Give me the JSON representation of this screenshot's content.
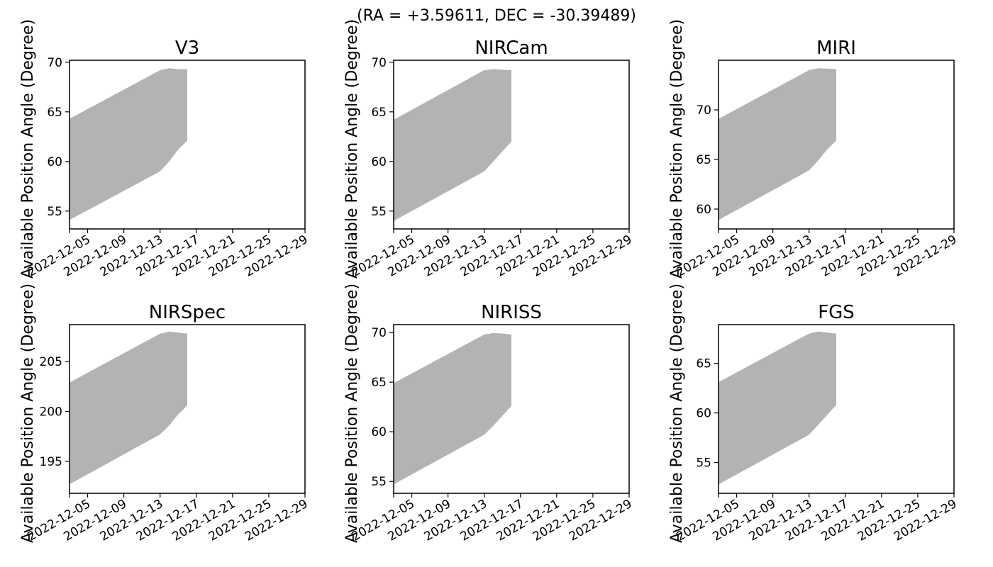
{
  "figure": {
    "title": "(RA = +3.59611, DEC = -30.39489)"
  },
  "colors": {
    "fill": "#b3b3b3",
    "axes": "#000000",
    "background": "#ffffff"
  },
  "chart_data": [
    {
      "type": "area",
      "title": "V3",
      "xlabel": "",
      "ylabel": "Available Position Angle (Degree)",
      "xlim": [
        "2022-12-03",
        "2022-12-29"
      ],
      "ylim": [
        53.2,
        70.2
      ],
      "x_ticks": [
        "2022-12-03",
        "2022-12-05",
        "2022-12-09",
        "2022-12-13",
        "2022-12-17",
        "2022-12-21",
        "2022-12-25",
        "2022-12-29"
      ],
      "x_tick_labels": [
        "",
        "2022-12-05",
        "2022-12-09",
        "2022-12-13",
        "2022-12-17",
        "2022-12-21",
        "2022-12-25",
        "2022-12-29"
      ],
      "y_ticks": [
        55,
        60,
        65,
        70
      ],
      "x": [
        "2022-12-03",
        "2022-12-13",
        "2022-12-14",
        "2022-12-15",
        "2022-12-16"
      ],
      "lower": [
        54.1,
        59.0,
        60.0,
        61.2,
        62.1
      ],
      "upper": [
        64.3,
        69.2,
        69.4,
        69.3,
        69.3
      ]
    },
    {
      "type": "area",
      "title": "NIRCam",
      "xlabel": "",
      "ylabel": "Available Position Angle (Degree)",
      "xlim": [
        "2022-12-03",
        "2022-12-29"
      ],
      "ylim": [
        53.2,
        70.2
      ],
      "x_ticks": [
        "2022-12-03",
        "2022-12-05",
        "2022-12-09",
        "2022-12-13",
        "2022-12-17",
        "2022-12-21",
        "2022-12-25",
        "2022-12-29"
      ],
      "x_tick_labels": [
        "",
        "2022-12-05",
        "2022-12-09",
        "2022-12-13",
        "2022-12-17",
        "2022-12-21",
        "2022-12-25",
        "2022-12-29"
      ],
      "y_ticks": [
        55,
        60,
        65,
        70
      ],
      "x": [
        "2022-12-03",
        "2022-12-13",
        "2022-12-14",
        "2022-12-15",
        "2022-12-16"
      ],
      "lower": [
        54.0,
        59.0,
        60.0,
        61.0,
        62.0
      ],
      "upper": [
        64.2,
        69.2,
        69.3,
        69.25,
        69.2
      ]
    },
    {
      "type": "area",
      "title": "MIRI",
      "xlabel": "",
      "ylabel": "Available Position Angle (Degree)",
      "xlim": [
        "2022-12-03",
        "2022-12-29"
      ],
      "ylim": [
        58.0,
        75.0
      ],
      "x_ticks": [
        "2022-12-03",
        "2022-12-05",
        "2022-12-09",
        "2022-12-13",
        "2022-12-17",
        "2022-12-21",
        "2022-12-25",
        "2022-12-29"
      ],
      "x_tick_labels": [
        "",
        "2022-12-05",
        "2022-12-09",
        "2022-12-13",
        "2022-12-17",
        "2022-12-21",
        "2022-12-25",
        "2022-12-29"
      ],
      "y_ticks": [
        60,
        65,
        70
      ],
      "x": [
        "2022-12-03",
        "2022-12-13",
        "2022-12-14",
        "2022-12-15",
        "2022-12-16"
      ],
      "lower": [
        58.9,
        63.9,
        64.9,
        66.0,
        66.9
      ],
      "upper": [
        69.1,
        74.0,
        74.2,
        74.15,
        74.1
      ]
    },
    {
      "type": "area",
      "title": "NIRSpec",
      "xlabel": "",
      "ylabel": "Available Position Angle (Degree)",
      "xlim": [
        "2022-12-03",
        "2022-12-29"
      ],
      "ylim": [
        191.8,
        208.7
      ],
      "x_ticks": [
        "2022-12-03",
        "2022-12-05",
        "2022-12-09",
        "2022-12-13",
        "2022-12-17",
        "2022-12-21",
        "2022-12-25",
        "2022-12-29"
      ],
      "x_tick_labels": [
        "",
        "2022-12-05",
        "2022-12-09",
        "2022-12-13",
        "2022-12-17",
        "2022-12-21",
        "2022-12-25",
        "2022-12-29"
      ],
      "y_ticks": [
        195,
        200,
        205
      ],
      "x": [
        "2022-12-03",
        "2022-12-13",
        "2022-12-14",
        "2022-12-15",
        "2022-12-16"
      ],
      "lower": [
        192.7,
        197.7,
        198.6,
        199.7,
        200.6
      ],
      "upper": [
        202.9,
        207.8,
        208.0,
        207.9,
        207.8
      ]
    },
    {
      "type": "area",
      "title": "NIRISS",
      "xlabel": "",
      "ylabel": "Available Position Angle (Degree)",
      "xlim": [
        "2022-12-03",
        "2022-12-29"
      ],
      "ylim": [
        53.8,
        70.8
      ],
      "x_ticks": [
        "2022-12-03",
        "2022-12-05",
        "2022-12-09",
        "2022-12-13",
        "2022-12-17",
        "2022-12-21",
        "2022-12-25",
        "2022-12-29"
      ],
      "x_tick_labels": [
        "",
        "2022-12-05",
        "2022-12-09",
        "2022-12-13",
        "2022-12-17",
        "2022-12-21",
        "2022-12-25",
        "2022-12-29"
      ],
      "y_ticks": [
        55,
        60,
        65,
        70
      ],
      "x": [
        "2022-12-03",
        "2022-12-13",
        "2022-12-14",
        "2022-12-15",
        "2022-12-16"
      ],
      "lower": [
        54.7,
        59.7,
        60.6,
        61.6,
        62.6
      ],
      "upper": [
        64.9,
        69.8,
        69.95,
        69.9,
        69.8
      ]
    },
    {
      "type": "area",
      "title": "FGS",
      "xlabel": "",
      "ylabel": "Available Position Angle (Degree)",
      "xlim": [
        "2022-12-03",
        "2022-12-29"
      ],
      "ylim": [
        51.9,
        68.9
      ],
      "x_ticks": [
        "2022-12-03",
        "2022-12-05",
        "2022-12-09",
        "2022-12-13",
        "2022-12-17",
        "2022-12-21",
        "2022-12-25",
        "2022-12-29"
      ],
      "x_tick_labels": [
        "",
        "2022-12-05",
        "2022-12-09",
        "2022-12-13",
        "2022-12-17",
        "2022-12-21",
        "2022-12-25",
        "2022-12-29"
      ],
      "y_ticks": [
        55,
        60,
        65
      ],
      "x": [
        "2022-12-03",
        "2022-12-13",
        "2022-12-14",
        "2022-12-15",
        "2022-12-16"
      ],
      "lower": [
        52.8,
        57.8,
        58.8,
        59.8,
        60.8
      ],
      "upper": [
        63.1,
        68.0,
        68.2,
        68.1,
        68.0
      ]
    }
  ]
}
